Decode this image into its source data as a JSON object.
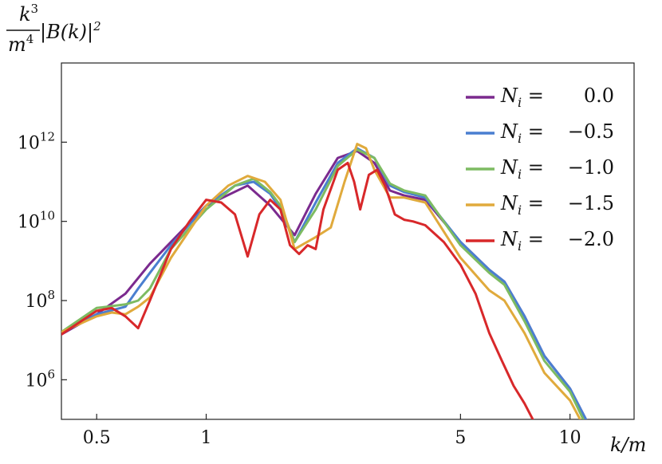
{
  "chart_data": {
    "type": "line",
    "title": "",
    "ylabel": "k^3/m^4 |B(k)|^2",
    "xlabel": "k/m",
    "x_scale": "log",
    "y_scale": "log",
    "xlim": [
      0.4,
      15
    ],
    "ylim": [
      100000,
      100000000000000
    ],
    "grid": false,
    "legend_position": "top-right",
    "x_ticks": [
      {
        "value": 0.5,
        "label": "0.5"
      },
      {
        "value": 1,
        "label": "1"
      },
      {
        "value": 5,
        "label": "5"
      },
      {
        "value": 10,
        "label": "10"
      }
    ],
    "y_ticks": [
      {
        "value": 1000000,
        "base": "10",
        "exp": "6"
      },
      {
        "value": 100000000,
        "base": "10",
        "exp": "8"
      },
      {
        "value": 10000000000,
        "base": "10",
        "exp": "10"
      },
      {
        "value": 1000000000000,
        "base": "10",
        "exp": "12"
      }
    ],
    "series": [
      {
        "name": "N_i = 0.0",
        "legend_value": "0.0",
        "color": "#7b2a8e",
        "points": [
          [
            0.4,
            14000000.0
          ],
          [
            0.5,
            45000000.0
          ],
          [
            0.6,
            150000000.0
          ],
          [
            0.7,
            850000000.0
          ],
          [
            0.8,
            3000000000.0
          ],
          [
            1.0,
            25000000000.0
          ],
          [
            1.3,
            80000000000.0
          ],
          [
            1.5,
            25000000000.0
          ],
          [
            1.75,
            4500000000.0
          ],
          [
            2.0,
            50000000000.0
          ],
          [
            2.3,
            400000000000.0
          ],
          [
            2.6,
            600000000000.0
          ],
          [
            2.9,
            300000000000.0
          ],
          [
            3.2,
            60000000000.0
          ],
          [
            3.5,
            45000000000.0
          ],
          [
            4.0,
            35000000000.0
          ],
          [
            5.0,
            3000000000.0
          ],
          [
            6.0,
            600000000.0
          ],
          [
            6.6,
            300000000.0
          ],
          [
            7.5,
            40000000.0
          ],
          [
            8.5,
            4000000.0
          ],
          [
            10.0,
            600000.0
          ],
          [
            11.2,
            80000.0
          ]
        ]
      },
      {
        "name": "N_i = −0.5",
        "legend_value": "−0.5",
        "color": "#4a7fd0",
        "points": [
          [
            0.4,
            15000000.0
          ],
          [
            0.5,
            45000000.0
          ],
          [
            0.6,
            70000000.0
          ],
          [
            0.65,
            200000000.0
          ],
          [
            0.7,
            500000000.0
          ],
          [
            0.8,
            2500000000.0
          ],
          [
            1.0,
            25000000000.0
          ],
          [
            1.2,
            80000000000.0
          ],
          [
            1.35,
            100000000000.0
          ],
          [
            1.5,
            50000000000.0
          ],
          [
            1.6,
            20000000000.0
          ],
          [
            1.75,
            3000000000.0
          ],
          [
            2.0,
            30000000000.0
          ],
          [
            2.3,
            300000000000.0
          ],
          [
            2.6,
            700000000000.0
          ],
          [
            2.9,
            400000000000.0
          ],
          [
            3.2,
            80000000000.0
          ],
          [
            3.5,
            55000000000.0
          ],
          [
            4.0,
            40000000000.0
          ],
          [
            5.0,
            3000000000.0
          ],
          [
            6.0,
            600000000.0
          ],
          [
            6.6,
            300000000.0
          ],
          [
            7.5,
            40000000.0
          ],
          [
            8.5,
            4000000.0
          ],
          [
            10.0,
            600000.0
          ],
          [
            11.2,
            80000.0
          ]
        ]
      },
      {
        "name": "N_i = −1.0",
        "legend_value": "−1.0",
        "color": "#7dbb62",
        "points": [
          [
            0.4,
            16000000.0
          ],
          [
            0.5,
            65000000.0
          ],
          [
            0.6,
            80000000.0
          ],
          [
            0.65,
            100000000.0
          ],
          [
            0.7,
            200000000.0
          ],
          [
            0.8,
            2000000000.0
          ],
          [
            1.0,
            20000000000.0
          ],
          [
            1.2,
            80000000000.0
          ],
          [
            1.35,
            120000000000.0
          ],
          [
            1.5,
            55000000000.0
          ],
          [
            1.6,
            25000000000.0
          ],
          [
            1.75,
            3000000000.0
          ],
          [
            2.0,
            20000000000.0
          ],
          [
            2.3,
            250000000000.0
          ],
          [
            2.6,
            650000000000.0
          ],
          [
            2.9,
            400000000000.0
          ],
          [
            3.2,
            90000000000.0
          ],
          [
            3.5,
            60000000000.0
          ],
          [
            4.0,
            45000000000.0
          ],
          [
            5.0,
            2500000000.0
          ],
          [
            6.0,
            500000000.0
          ],
          [
            6.6,
            250000000.0
          ],
          [
            7.5,
            30000000.0
          ],
          [
            8.5,
            3000000.0
          ],
          [
            10.0,
            500000.0
          ],
          [
            11.0,
            80000.0
          ]
        ]
      },
      {
        "name": "N_i = −1.5",
        "legend_value": "−1.5",
        "color": "#e0aa3c",
        "points": [
          [
            0.4,
            16000000.0
          ],
          [
            0.5,
            40000000.0
          ],
          [
            0.55,
            50000000.0
          ],
          [
            0.6,
            45000000.0
          ],
          [
            0.65,
            70000000.0
          ],
          [
            0.7,
            120000000.0
          ],
          [
            0.8,
            1200000000.0
          ],
          [
            1.0,
            25000000000.0
          ],
          [
            1.15,
            80000000000.0
          ],
          [
            1.3,
            140000000000.0
          ],
          [
            1.45,
            100000000000.0
          ],
          [
            1.6,
            35000000000.0
          ],
          [
            1.75,
            2000000000.0
          ],
          [
            2.0,
            4000000000.0
          ],
          [
            2.2,
            7000000000.0
          ],
          [
            2.4,
            100000000000.0
          ],
          [
            2.6,
            900000000000.0
          ],
          [
            2.75,
            700000000000.0
          ],
          [
            2.9,
            200000000000.0
          ],
          [
            3.2,
            40000000000.0
          ],
          [
            3.5,
            40000000000.0
          ],
          [
            4.0,
            30000000000.0
          ],
          [
            5.0,
            1200000000.0
          ],
          [
            6.0,
            180000000.0
          ],
          [
            6.6,
            100000000.0
          ],
          [
            7.5,
            15000000.0
          ],
          [
            8.5,
            1500000.0
          ],
          [
            10.0,
            300000.0
          ],
          [
            10.8,
            80000.0
          ]
        ]
      },
      {
        "name": "N_i = −2.0",
        "legend_value": "−2.0",
        "color": "#d8282a",
        "points": [
          [
            0.4,
            14000000.0
          ],
          [
            0.5,
            55000000.0
          ],
          [
            0.55,
            65000000.0
          ],
          [
            0.6,
            40000000.0
          ],
          [
            0.65,
            20000000.0
          ],
          [
            0.7,
            100000000.0
          ],
          [
            0.8,
            2000000000.0
          ],
          [
            0.9,
            10000000000.0
          ],
          [
            1.0,
            35000000000.0
          ],
          [
            1.1,
            30000000000.0
          ],
          [
            1.2,
            15000000000.0
          ],
          [
            1.3,
            1300000000.0
          ],
          [
            1.4,
            15000000000.0
          ],
          [
            1.5,
            35000000000.0
          ],
          [
            1.6,
            20000000000.0
          ],
          [
            1.7,
            2500000000.0
          ],
          [
            1.8,
            1500000000.0
          ],
          [
            1.9,
            2500000000.0
          ],
          [
            2.0,
            2000000000.0
          ],
          [
            2.1,
            20000000000.0
          ],
          [
            2.3,
            200000000000.0
          ],
          [
            2.45,
            300000000000.0
          ],
          [
            2.55,
            100000000000.0
          ],
          [
            2.65,
            20000000000.0
          ],
          [
            2.8,
            150000000000.0
          ],
          [
            2.95,
            200000000000.0
          ],
          [
            3.1,
            80000000000.0
          ],
          [
            3.3,
            15000000000.0
          ],
          [
            3.5,
            11000000000.0
          ],
          [
            3.7,
            10000000000.0
          ],
          [
            4.0,
            8000000000.0
          ],
          [
            4.5,
            3000000000.0
          ],
          [
            5.0,
            800000000.0
          ],
          [
            5.5,
            150000000.0
          ],
          [
            6.0,
            15000000.0
          ],
          [
            6.5,
            3000000.0
          ],
          [
            7.0,
            700000.0
          ],
          [
            7.5,
            250000.0
          ],
          [
            8.0,
            80000.0
          ]
        ]
      }
    ]
  }
}
